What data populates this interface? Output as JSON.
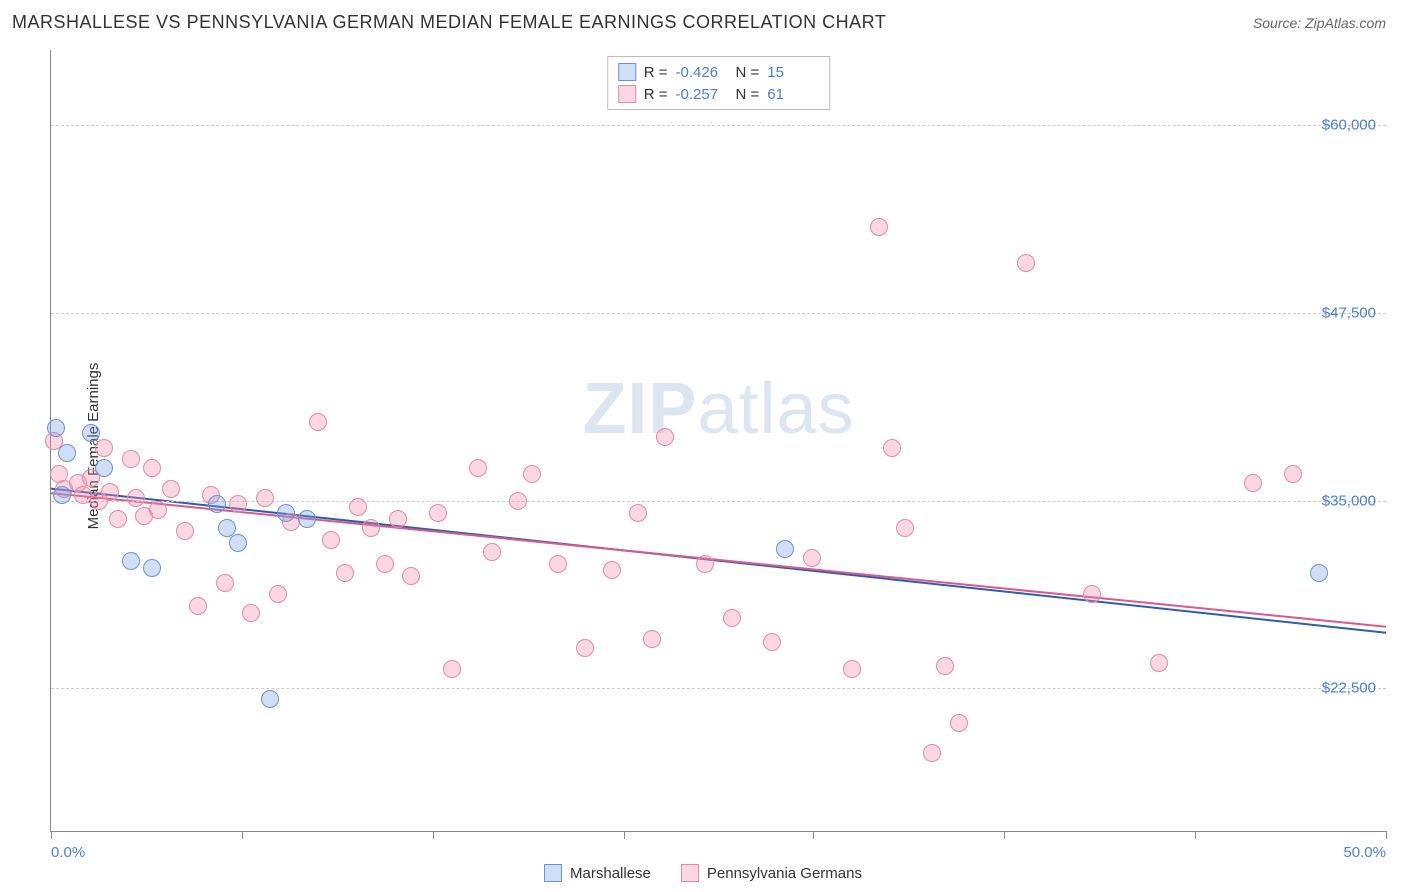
{
  "header": {
    "title": "MARSHALLESE VS PENNSYLVANIA GERMAN MEDIAN FEMALE EARNINGS CORRELATION CHART",
    "source": "Source: ZipAtlas.com"
  },
  "chart": {
    "type": "scatter",
    "ylabel": "Median Female Earnings",
    "xlim": [
      0,
      50
    ],
    "ylim": [
      13000,
      65000
    ],
    "xtick_positions_pct": [
      0,
      14.3,
      28.6,
      42.9,
      57.1,
      71.4,
      85.7,
      100
    ],
    "xtick_labels_shown": {
      "0": "0.0%",
      "100": "50.0%"
    },
    "y_gridlines": [
      22500,
      35000,
      47500,
      60000
    ],
    "y_gridline_labels": [
      "$22,500",
      "$35,000",
      "$47,500",
      "$60,000"
    ],
    "background_color": "#ffffff",
    "grid_color": "#cccccc",
    "axis_color": "#888888",
    "tick_label_color": "#4a7fd8",
    "point_radius": 9,
    "watermark": {
      "bold": "ZIP",
      "rest": "atlas"
    },
    "series": [
      {
        "name": "Marshallese",
        "fill": "rgba(120,160,230,0.35)",
        "stroke": "#6a94d6",
        "R": "-0.426",
        "N": "15",
        "trend": {
          "y_at_x0": 35800,
          "y_at_x50": 26200,
          "color": "#2e5db0",
          "width": 2
        },
        "points": [
          [
            0.2,
            39800
          ],
          [
            0.6,
            38200
          ],
          [
            1.5,
            39500
          ],
          [
            0.4,
            35400
          ],
          [
            3.0,
            31000
          ],
          [
            3.8,
            30500
          ],
          [
            6.2,
            34800
          ],
          [
            6.6,
            33200
          ],
          [
            8.8,
            34200
          ],
          [
            7.0,
            32200
          ],
          [
            8.2,
            21800
          ],
          [
            9.6,
            33800
          ],
          [
            27.5,
            31800
          ],
          [
            47.5,
            30200
          ],
          [
            2.0,
            37200
          ]
        ]
      },
      {
        "name": "Pennsylvania Germans",
        "fill": "rgba(240,140,170,0.35)",
        "stroke": "#e48aa8",
        "R": "-0.257",
        "N": "61",
        "trend": {
          "y_at_x0": 35500,
          "y_at_x50": 26600,
          "color": "#d85a8a",
          "width": 2
        },
        "points": [
          [
            0.1,
            39000
          ],
          [
            0.3,
            36800
          ],
          [
            0.5,
            35800
          ],
          [
            1.0,
            36200
          ],
          [
            1.2,
            35400
          ],
          [
            1.5,
            36500
          ],
          [
            1.8,
            35000
          ],
          [
            2.0,
            38500
          ],
          [
            2.2,
            35600
          ],
          [
            2.5,
            33800
          ],
          [
            3.0,
            37800
          ],
          [
            3.2,
            35200
          ],
          [
            3.5,
            34000
          ],
          [
            3.8,
            37200
          ],
          [
            4.0,
            34400
          ],
          [
            4.5,
            35800
          ],
          [
            5.0,
            33000
          ],
          [
            5.5,
            28000
          ],
          [
            6.0,
            35400
          ],
          [
            6.5,
            29500
          ],
          [
            7.0,
            34800
          ],
          [
            7.5,
            27500
          ],
          [
            8.0,
            35200
          ],
          [
            8.5,
            28800
          ],
          [
            9.0,
            33600
          ],
          [
            10.0,
            40200
          ],
          [
            10.5,
            32400
          ],
          [
            11.0,
            30200
          ],
          [
            11.5,
            34600
          ],
          [
            12.0,
            33200
          ],
          [
            12.5,
            30800
          ],
          [
            13.0,
            33800
          ],
          [
            13.5,
            30000
          ],
          [
            14.5,
            34200
          ],
          [
            15.0,
            23800
          ],
          [
            16.0,
            37200
          ],
          [
            16.5,
            31600
          ],
          [
            17.5,
            35000
          ],
          [
            18.0,
            36800
          ],
          [
            19.0,
            30800
          ],
          [
            20.0,
            25200
          ],
          [
            21.0,
            30400
          ],
          [
            22.0,
            34200
          ],
          [
            22.5,
            25800
          ],
          [
            23.0,
            39200
          ],
          [
            24.5,
            30800
          ],
          [
            25.5,
            27200
          ],
          [
            27.0,
            25600
          ],
          [
            28.5,
            31200
          ],
          [
            30.0,
            23800
          ],
          [
            31.0,
            53200
          ],
          [
            31.5,
            38500
          ],
          [
            32.0,
            33200
          ],
          [
            33.0,
            18200
          ],
          [
            33.5,
            24000
          ],
          [
            34.0,
            20200
          ],
          [
            36.5,
            50800
          ],
          [
            39.0,
            28800
          ],
          [
            41.5,
            24200
          ],
          [
            45.0,
            36200
          ],
          [
            46.5,
            36800
          ]
        ]
      }
    ],
    "bottom_legend": [
      {
        "label": "Marshallese",
        "fill": "rgba(120,160,230,0.35)",
        "stroke": "#6a94d6"
      },
      {
        "label": "Pennsylvania Germans",
        "fill": "rgba(240,140,170,0.35)",
        "stroke": "#e48aa8"
      }
    ]
  }
}
